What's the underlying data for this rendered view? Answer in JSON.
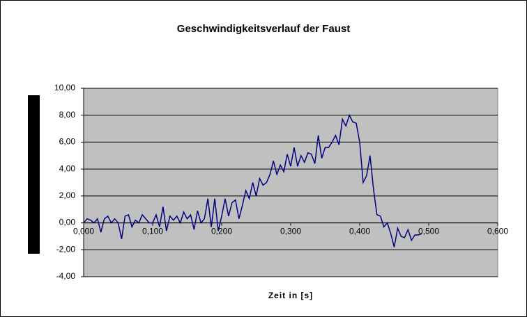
{
  "chart_data": {
    "type": "line",
    "title": "Geschwindigkeitsverlauf der Faust",
    "x_label": "Zeit in [s]",
    "x": [
      0,
      0.005,
      0.01,
      0.015,
      0.02,
      0.025,
      0.03,
      0.035,
      0.04,
      0.045,
      0.05,
      0.055,
      0.06,
      0.065,
      0.07,
      0.075,
      0.08,
      0.085,
      0.09,
      0.095,
      0.1,
      0.105,
      0.11,
      0.115,
      0.12,
      0.125,
      0.13,
      0.135,
      0.14,
      0.145,
      0.15,
      0.155,
      0.16,
      0.165,
      0.17,
      0.175,
      0.18,
      0.185,
      0.19,
      0.195,
      0.2,
      0.205,
      0.21,
      0.215,
      0.22,
      0.225,
      0.23,
      0.235,
      0.24,
      0.245,
      0.25,
      0.255,
      0.26,
      0.265,
      0.27,
      0.275,
      0.28,
      0.285,
      0.29,
      0.295,
      0.3,
      0.305,
      0.31,
      0.315,
      0.32,
      0.325,
      0.33,
      0.335,
      0.34,
      0.345,
      0.35,
      0.355,
      0.36,
      0.365,
      0.37,
      0.375,
      0.38,
      0.385,
      0.39,
      0.395,
      0.4,
      0.405,
      0.41,
      0.415,
      0.42,
      0.425,
      0.43,
      0.435,
      0.44,
      0.445,
      0.45,
      0.455,
      0.46,
      0.465,
      0.47,
      0.475,
      0.48,
      0.485,
      0.49
    ],
    "series": [
      {
        "color": "#000080",
        "values": [
          0,
          0.3,
          0.2,
          0,
          0.3,
          -0.7,
          0.3,
          0.5,
          0,
          0.3,
          0,
          -1.2,
          0.5,
          0.6,
          -0.3,
          0.2,
          0,
          0.6,
          0.3,
          0,
          0,
          0.6,
          -0.3,
          1.2,
          -0.6,
          0.5,
          0.2,
          0.5,
          0,
          0.8,
          0.3,
          0.6,
          -0.5,
          0.9,
          0,
          0.3,
          1.8,
          -0.3,
          1.8,
          -0.6,
          0.5,
          1.8,
          0.5,
          1.5,
          1.7,
          0.3,
          1.3,
          2.4,
          1.8,
          3.0,
          2.0,
          3.3,
          2.8,
          3.0,
          3.6,
          4.6,
          3.6,
          4.3,
          3.8,
          5.1,
          4.2,
          5.6,
          4.2,
          5.0,
          4.5,
          5.2,
          5.1,
          4.4,
          6.5,
          4.8,
          5.6,
          5.6,
          6.0,
          6.5,
          5.8,
          7.7,
          7.2,
          8.0,
          7.5,
          7.4,
          6.0,
          3.0,
          3.5,
          5.0,
          2.5,
          0.6,
          0.5,
          -0.3,
          0,
          -0.8,
          -1.8,
          -0.4,
          -1.0,
          -1.1,
          -0.5,
          -1.3,
          -0.9,
          -0.9,
          -0.8
        ]
      }
    ],
    "xlim": [
      0,
      0.6
    ],
    "xticks": [
      {
        "value": 0,
        "label": "0,000"
      },
      {
        "value": 0.1,
        "label": "0,100"
      },
      {
        "value": 0.2,
        "label": "0,200"
      },
      {
        "value": 0.3,
        "label": "0,300"
      },
      {
        "value": 0.4,
        "label": "0,400"
      },
      {
        "value": 0.5,
        "label": "0,500"
      },
      {
        "value": 0.6,
        "label": "0,600"
      }
    ],
    "ylim": [
      -4,
      10
    ],
    "yticks": [
      {
        "value": -4,
        "label": "-4,00"
      },
      {
        "value": -2,
        "label": "-2,00"
      },
      {
        "value": 0,
        "label": "0,00"
      },
      {
        "value": 2,
        "label": "2,00"
      },
      {
        "value": 4,
        "label": "4,00"
      },
      {
        "value": 6,
        "label": "6,00"
      },
      {
        "value": 8,
        "label": "8,00"
      },
      {
        "value": 10,
        "label": "10,00"
      }
    ],
    "grid": true
  }
}
